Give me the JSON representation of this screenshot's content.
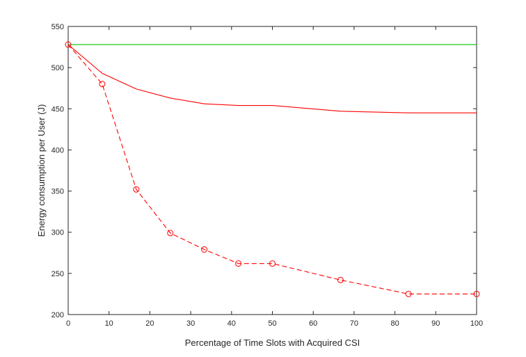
{
  "chart_data": {
    "type": "line",
    "xlabel": "Percentage of Time Slots with Acquired CSI",
    "ylabel": "Energy consumption per User (J)",
    "xlim": [
      0,
      100
    ],
    "ylim": [
      200,
      550
    ],
    "xticks": [
      0,
      10,
      20,
      30,
      40,
      50,
      60,
      70,
      80,
      90,
      100
    ],
    "yticks": [
      200,
      250,
      300,
      350,
      400,
      450,
      500,
      550
    ],
    "grid": false,
    "legend": "none",
    "series": [
      {
        "color": "#00c000",
        "line_style": "solid",
        "marker": "none",
        "x": [
          0,
          100
        ],
        "y": [
          528,
          528
        ]
      },
      {
        "color": "#ff0000",
        "line_style": "solid",
        "marker": "none",
        "x": [
          0,
          8.33,
          16.67,
          25,
          33.33,
          41.67,
          50,
          66.67,
          83.33,
          100
        ],
        "y": [
          528,
          493,
          474,
          463,
          456,
          454,
          454,
          447,
          445,
          445
        ]
      },
      {
        "color": "#ff0000",
        "line_style": "dashed",
        "marker": "circle",
        "x": [
          0,
          8.33,
          16.67,
          25,
          33.33,
          41.67,
          50,
          66.67,
          83.33,
          100
        ],
        "y": [
          528,
          480,
          352,
          299,
          279,
          262,
          262,
          242,
          225,
          225
        ]
      }
    ]
  }
}
